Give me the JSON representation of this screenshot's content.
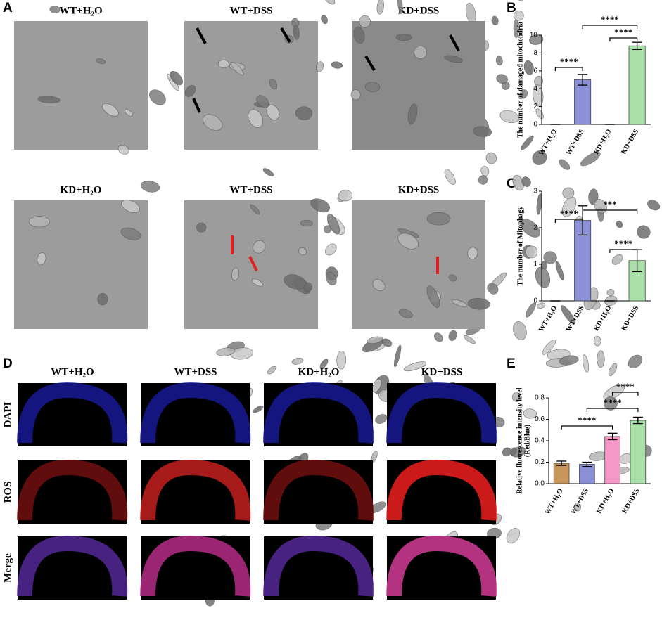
{
  "panels": [
    "A",
    "B",
    "C",
    "D",
    "E"
  ],
  "micrographs": [
    "WT+H₂O",
    "WT+DSS",
    "KD+DSS",
    "KD+H₂O",
    "WT+DSS",
    "KD+DSS"
  ],
  "fluorescence": {
    "columns": [
      "WT+H₂O",
      "WT+DSS",
      "KD+H₂O",
      "KD+DSS"
    ],
    "rows": [
      "DAPI",
      "ROS",
      "Merge"
    ]
  },
  "chart_data": [
    {
      "type": "bar",
      "ylabel": "The number of damaged mitochondria",
      "categories": [
        "WT+H₂O",
        "WT+DSS",
        "KD+H₂O",
        "KD+DSS"
      ],
      "values": [
        0,
        5,
        0,
        8.8
      ],
      "errors": [
        0,
        0.6,
        0,
        0.4
      ],
      "colors": [
        "#8b8fd6",
        "#8b8fd6",
        "#a8e0a8",
        "#a8e0a8"
      ],
      "ylim": [
        0,
        10
      ],
      "yticks": [
        0,
        2,
        4,
        6,
        8,
        10
      ],
      "annotations": [
        "****",
        "****",
        "****"
      ]
    },
    {
      "type": "bar",
      "ylabel": "The number of Mitophagy",
      "categories": [
        "WT+H₂O",
        "WT+DSS",
        "KD+H₂O",
        "KD+DSS"
      ],
      "values": [
        0,
        2.2,
        0,
        1.1
      ],
      "errors": [
        0,
        0.4,
        0,
        0.3
      ],
      "colors": [
        "#8b8fd6",
        "#8b8fd6",
        "#a8e0a8",
        "#a8e0a8"
      ],
      "ylim": [
        0,
        3
      ],
      "yticks": [
        0,
        1,
        2,
        3
      ],
      "annotations": [
        "****",
        "***",
        "****"
      ]
    },
    {
      "type": "bar",
      "ylabel": [
        "Relative fluorescence intensity level",
        "(Red/Blue)"
      ],
      "categories": [
        "WT+H₂O",
        "WT+DSS",
        "KD+H₂O",
        "KD+DSS"
      ],
      "values": [
        0.19,
        0.18,
        0.44,
        0.59
      ],
      "errors": [
        0.02,
        0.02,
        0.03,
        0.03
      ],
      "colors": [
        "#c8955a",
        "#8b8fd6",
        "#f598c8",
        "#a8e0a8"
      ],
      "ylim": [
        0,
        0.8
      ],
      "yticks": [
        {
          "value": 0,
          "label": "0.0"
        },
        0.2,
        0.4,
        0.6,
        0.8
      ],
      "annotations": [
        "****",
        "****",
        "****"
      ]
    }
  ]
}
